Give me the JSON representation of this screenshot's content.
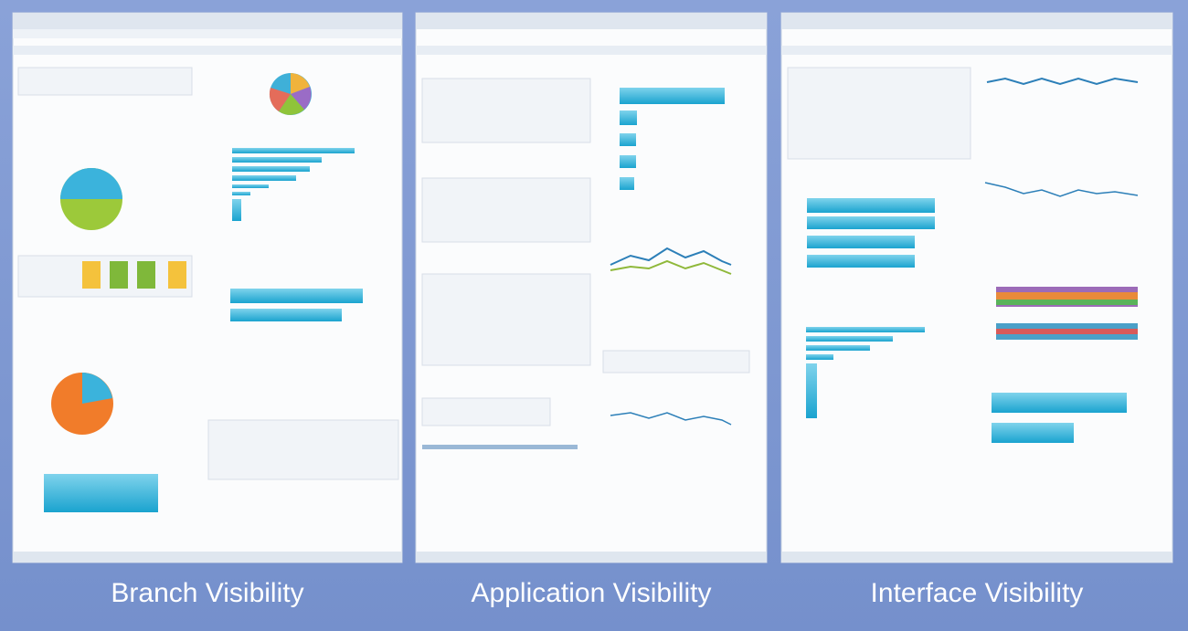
{
  "panels": [
    {
      "caption": "Branch Visibility"
    },
    {
      "caption": "Application Visibility"
    },
    {
      "caption": "Interface Visibility"
    }
  ]
}
